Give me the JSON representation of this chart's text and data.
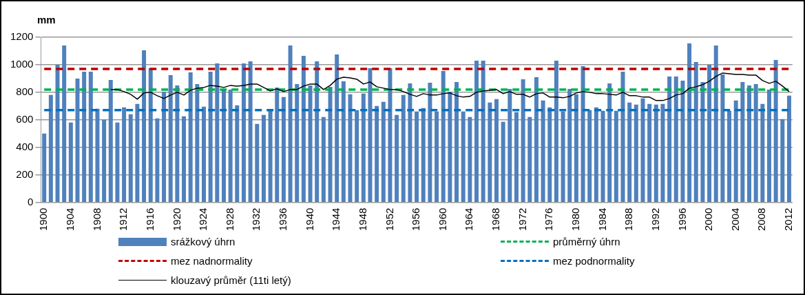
{
  "chart_data": {
    "type": "bar",
    "ylabel": "mm",
    "categories": [
      "1900",
      null,
      null,
      null,
      "1904",
      null,
      null,
      null,
      "1908",
      null,
      null,
      null,
      "1912",
      null,
      null,
      null,
      "1916",
      null,
      null,
      null,
      "1920",
      null,
      null,
      null,
      "1924",
      null,
      null,
      null,
      "1928",
      null,
      null,
      null,
      "1932",
      null,
      null,
      null,
      "1936",
      null,
      null,
      null,
      "1940",
      null,
      null,
      null,
      "1944",
      null,
      null,
      null,
      "1948",
      null,
      null,
      null,
      "1952",
      null,
      null,
      null,
      "1956",
      null,
      null,
      null,
      "1960",
      null,
      null,
      null,
      "1964",
      null,
      null,
      null,
      "1968",
      null,
      null,
      null,
      "1972",
      null,
      null,
      null,
      "1976",
      null,
      null,
      null,
      "1980",
      null,
      null,
      null,
      "1984",
      null,
      null,
      null,
      "1988",
      null,
      null,
      null,
      "1992",
      null,
      null,
      null,
      "1996",
      null,
      null,
      null,
      "2000",
      null,
      null,
      null,
      "2004",
      null,
      null,
      null,
      "2008",
      null,
      null,
      null,
      "2012"
    ],
    "series": [
      {
        "name": "srážkový úhrn",
        "color": "#4f81bd",
        "values": [
          500,
          780,
          1000,
          1140,
          580,
          900,
          950,
          950,
          680,
          600,
          890,
          580,
          690,
          640,
          715,
          1105,
          975,
          610,
          805,
          925,
          850,
          625,
          945,
          860,
          695,
          950,
          1010,
          820,
          820,
          705,
          1010,
          1025,
          570,
          635,
          670,
          835,
          765,
          1140,
          860,
          1065,
          850,
          1025,
          620,
          840,
          1075,
          880,
          785,
          670,
          790,
          975,
          700,
          730,
          975,
          635,
          780,
          865,
          660,
          685,
          870,
          660,
          955,
          805,
          875,
          660,
          620,
          1030,
          1030,
          725,
          750,
          585,
          825,
          655,
          895,
          620,
          910,
          740,
          690,
          1030,
          660,
          825,
          785,
          990,
          670,
          690,
          665,
          865,
          665,
          950,
          725,
          710,
          755,
          715,
          710,
          715,
          915,
          915,
          885,
          1155,
          1020,
          875,
          1000,
          1140,
          930,
          665,
          740,
          875,
          850,
          860,
          715,
          820,
          1035,
          605,
          775
        ]
      },
      {
        "name": "průměrný úhrn",
        "type": "line",
        "color": "#00b050",
        "line_style": "dashed",
        "values": [
          820,
          820,
          820,
          820,
          820,
          820,
          820,
          820,
          820,
          820,
          820,
          820,
          820,
          820,
          820,
          820,
          820,
          820,
          820,
          820,
          820,
          820,
          820,
          820,
          820,
          820,
          820,
          820,
          820,
          820,
          820,
          820,
          820,
          820,
          820,
          820,
          820,
          820,
          820,
          820,
          820,
          820,
          820,
          820,
          820,
          820,
          820,
          820,
          820,
          820,
          820,
          820,
          820,
          820,
          820,
          820,
          820,
          820,
          820,
          820,
          820,
          820,
          820,
          820,
          820,
          820,
          820,
          820,
          820,
          820,
          820,
          820,
          820,
          820,
          820,
          820,
          820,
          820,
          820,
          820,
          820,
          820,
          820,
          820,
          820,
          820,
          820,
          820,
          820,
          820,
          820,
          820,
          820,
          820,
          820,
          820,
          820,
          820,
          820,
          820,
          820,
          820,
          820,
          820,
          820,
          820,
          820,
          820,
          820,
          820,
          820,
          820,
          820
        ]
      },
      {
        "name": "mez nadnormality",
        "type": "line",
        "color": "#c00000",
        "line_style": "dashed",
        "values": [
          970,
          970,
          970,
          970,
          970,
          970,
          970,
          970,
          970,
          970,
          970,
          970,
          970,
          970,
          970,
          970,
          970,
          970,
          970,
          970,
          970,
          970,
          970,
          970,
          970,
          970,
          970,
          970,
          970,
          970,
          970,
          970,
          970,
          970,
          970,
          970,
          970,
          970,
          970,
          970,
          970,
          970,
          970,
          970,
          970,
          970,
          970,
          970,
          970,
          970,
          970,
          970,
          970,
          970,
          970,
          970,
          970,
          970,
          970,
          970,
          970,
          970,
          970,
          970,
          970,
          970,
          970,
          970,
          970,
          970,
          970,
          970,
          970,
          970,
          970,
          970,
          970,
          970,
          970,
          970,
          970,
          970,
          970,
          970,
          970,
          970,
          970,
          970,
          970,
          970,
          970,
          970,
          970,
          970,
          970,
          970,
          970,
          970,
          970,
          970,
          970,
          970,
          970,
          970,
          970,
          970,
          970,
          970,
          970,
          970,
          970,
          970,
          970
        ]
      },
      {
        "name": "mez podnormality",
        "type": "line",
        "color": "#0070c0",
        "line_style": "dashed",
        "values": [
          670,
          670,
          670,
          670,
          670,
          670,
          670,
          670,
          670,
          670,
          670,
          670,
          670,
          670,
          670,
          670,
          670,
          670,
          670,
          670,
          670,
          670,
          670,
          670,
          670,
          670,
          670,
          670,
          670,
          670,
          670,
          670,
          670,
          670,
          670,
          670,
          670,
          670,
          670,
          670,
          670,
          670,
          670,
          670,
          670,
          670,
          670,
          670,
          670,
          670,
          670,
          670,
          670,
          670,
          670,
          670,
          670,
          670,
          670,
          670,
          670,
          670,
          670,
          670,
          670,
          670,
          670,
          670,
          670,
          670,
          670,
          670,
          670,
          670,
          670,
          670,
          670,
          670,
          670,
          670,
          670,
          670,
          670,
          670,
          670,
          670,
          670,
          670,
          670,
          670,
          670,
          670,
          670,
          670,
          670,
          670,
          670,
          670,
          670,
          670,
          670,
          670,
          670,
          670,
          670,
          670,
          670,
          670,
          670,
          670,
          670,
          670,
          670
        ]
      },
      {
        "name": "klouzavý průměr (11ti letý)",
        "type": "line",
        "color": "#000000",
        "line_style": "solid",
        "values": [
          null,
          null,
          null,
          null,
          null,
          null,
          null,
          null,
          null,
          null,
          820,
          820,
          805,
          785,
          750,
          795,
          800,
          775,
          755,
          780,
          800,
          780,
          815,
          830,
          835,
          850,
          845,
          835,
          850,
          845,
          850,
          860,
          860,
          835,
          810,
          825,
          805,
          820,
          820,
          845,
          860,
          860,
          820,
          850,
          895,
          910,
          905,
          895,
          860,
          875,
          840,
          830,
          820,
          820,
          805,
          785,
          770,
          790,
          780,
          780,
          790,
          795,
          775,
          765,
          770,
          800,
          810,
          815,
          820,
          790,
          805,
          785,
          785,
          765,
          790,
          795,
          765,
          765,
          760,
          770,
          795,
          805,
          800,
          790,
          790,
          785,
          780,
          800,
          775,
          775,
          765,
          765,
          740,
          740,
          755,
          780,
          790,
          830,
          840,
          855,
          880,
          915,
          940,
          935,
          930,
          930,
          925,
          925,
          885,
          865,
          880,
          845,
          805
        ]
      }
    ],
    "ylim": [
      0,
      1200
    ],
    "yticks": [
      0,
      200,
      400,
      600,
      800,
      1000,
      1200
    ],
    "grid": "y",
    "legend": "bottom",
    "marker": "none"
  }
}
